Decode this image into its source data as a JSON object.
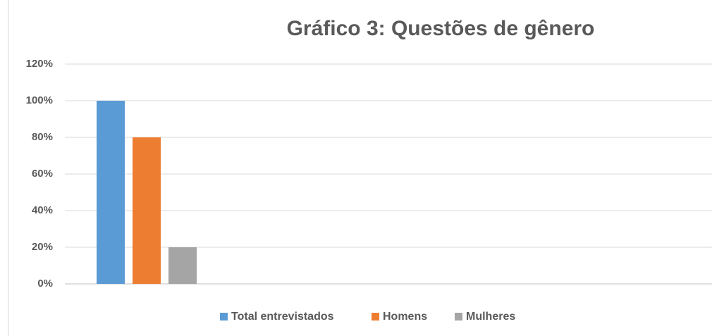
{
  "chart_data": {
    "type": "bar",
    "title": "Gráfico 3: Questões de gênero",
    "categories": [
      null
    ],
    "series": [
      {
        "name": "Total entrevistados",
        "color": "#5b9bd5",
        "values": [
          100
        ]
      },
      {
        "name": "Homens",
        "color": "#ed7d31",
        "values": [
          80
        ]
      },
      {
        "name": "Mulheres",
        "color": "#a5a5a5",
        "values": [
          20
        ]
      }
    ],
    "ylim": [
      0,
      120
    ],
    "yticks": [
      {
        "value": 0,
        "label": "0%"
      },
      {
        "value": 20,
        "label": "20%"
      },
      {
        "value": 40,
        "label": "40%"
      },
      {
        "value": 60,
        "label": "60%"
      },
      {
        "value": 80,
        "label": "80%"
      },
      {
        "value": 100,
        "label": "100%"
      },
      {
        "value": 120,
        "label": "120%"
      }
    ],
    "grid": true,
    "legend": "bottom"
  }
}
